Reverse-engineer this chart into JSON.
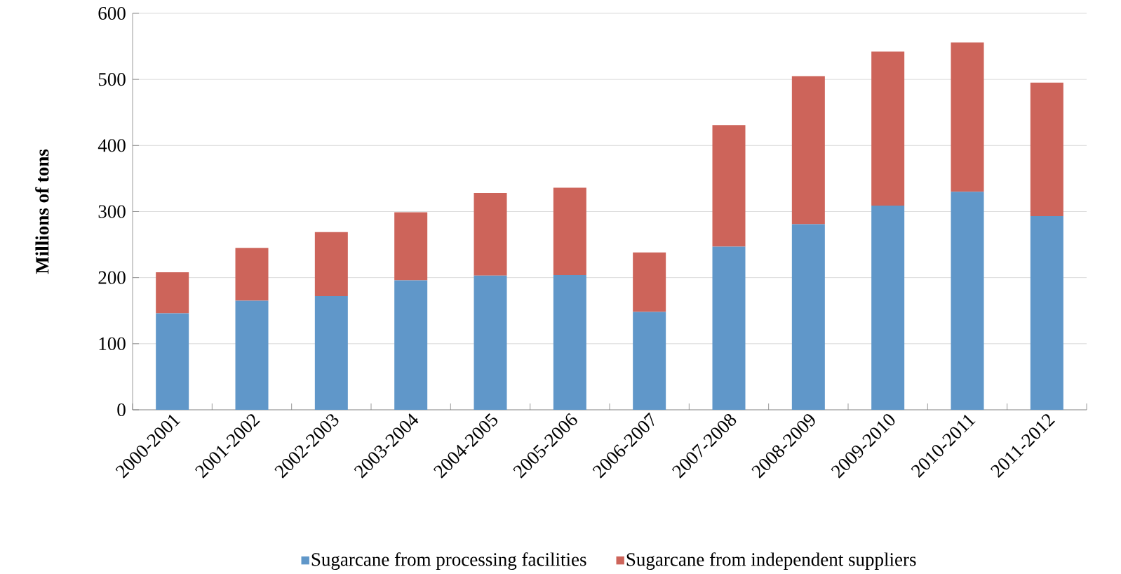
{
  "chart_data": {
    "type": "bar",
    "stacked": true,
    "ylabel": "Millions of tons",
    "categories": [
      "2000-2001",
      "2001-2002",
      "2002-2003",
      "2003-2004",
      "2004-2005",
      "2005-2006",
      "2006-2007",
      "2007-2008",
      "2008-2009",
      "2009-2010",
      "2010-2011",
      "2011-2012"
    ],
    "series": [
      {
        "name": "Sugarcane from processing facilities",
        "color": "#6097c9",
        "values": [
          146,
          165,
          172,
          196,
          203,
          204,
          148,
          247,
          281,
          309,
          330,
          293
        ]
      },
      {
        "name": "Sugarcane from independent suppliers",
        "color": "#cd645a",
        "values": [
          62,
          80,
          97,
          103,
          125,
          132,
          90,
          184,
          224,
          233,
          226,
          202
        ]
      }
    ],
    "ylim": [
      0,
      600
    ],
    "yticks": [
      0,
      100,
      200,
      300,
      400,
      500,
      600
    ],
    "grid": "y",
    "legend": "bottom"
  }
}
